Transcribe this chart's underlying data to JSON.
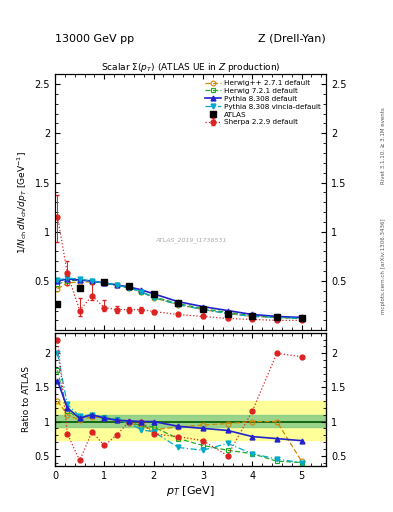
{
  "title_top": "13000 GeV pp",
  "title_right": "Z (Drell-Yan)",
  "plot_title": "Scalar Σ(p_T) (ATLAS UE in Z production)",
  "ylabel_main": "1/N$_{ch}$ dN$_{ch}$/dp$_T$ [GeV]",
  "ylabel_ratio": "Ratio to ATLAS",
  "xlabel": "p$_T$ [GeV]",
  "rivet_label": "Rivet 3.1.10, ≥ 3.1M events",
  "arxiv_label": "mcplots.cern.ch [arXiv:1306.3436]",
  "watermark": "ATLAS_2019_I1736531",
  "atlas_x": [
    0.05,
    0.5,
    1.0,
    1.5,
    2.0,
    2.5,
    3.0,
    3.5,
    4.0,
    4.5,
    5.0
  ],
  "atlas_y": [
    0.27,
    0.43,
    0.49,
    0.45,
    0.37,
    0.28,
    0.22,
    0.17,
    0.14,
    0.13,
    0.12
  ],
  "herwigpp_x": [
    0.05,
    0.25,
    0.5,
    0.75,
    1.0,
    1.25,
    1.5,
    1.75,
    2.0,
    2.5,
    3.0,
    3.5,
    4.0,
    4.5,
    5.0
  ],
  "herwigpp_y": [
    0.42,
    0.48,
    0.49,
    0.49,
    0.48,
    0.46,
    0.43,
    0.39,
    0.33,
    0.26,
    0.21,
    0.17,
    0.14,
    0.13,
    0.12
  ],
  "herwig721_x": [
    0.05,
    0.25,
    0.5,
    0.75,
    1.0,
    1.25,
    1.5,
    1.75,
    2.0,
    2.5,
    3.0,
    3.5,
    4.0,
    4.5,
    5.0
  ],
  "herwig721_y": [
    0.47,
    0.5,
    0.51,
    0.5,
    0.48,
    0.46,
    0.43,
    0.39,
    0.34,
    0.27,
    0.22,
    0.18,
    0.15,
    0.13,
    0.12
  ],
  "pythia8308_x": [
    0.05,
    0.25,
    0.5,
    0.75,
    1.0,
    1.25,
    1.5,
    1.75,
    2.0,
    2.5,
    3.0,
    3.5,
    4.0,
    4.5,
    5.0
  ],
  "pythia8308_y": [
    0.5,
    0.52,
    0.51,
    0.5,
    0.48,
    0.46,
    0.44,
    0.41,
    0.37,
    0.29,
    0.24,
    0.2,
    0.16,
    0.14,
    0.13
  ],
  "pythia_vincia_x": [
    0.05,
    0.25,
    0.5,
    0.75,
    1.0,
    1.25,
    1.5,
    1.75,
    2.0,
    2.5,
    3.0,
    3.5,
    4.0,
    4.5,
    5.0
  ],
  "pythia_vincia_y": [
    0.51,
    0.53,
    0.52,
    0.5,
    0.48,
    0.46,
    0.43,
    0.39,
    0.33,
    0.26,
    0.21,
    0.17,
    0.14,
    0.13,
    0.12
  ],
  "sherpa_x": [
    0.05,
    0.25,
    0.5,
    0.75,
    1.0,
    1.25,
    1.5,
    1.75,
    2.0,
    2.5,
    3.0,
    3.5,
    4.0,
    4.5,
    5.0
  ],
  "sherpa_y": [
    1.15,
    0.58,
    0.2,
    0.35,
    0.23,
    0.21,
    0.21,
    0.21,
    0.19,
    0.16,
    0.14,
    0.12,
    0.11,
    0.1,
    0.1
  ],
  "sherpa_yerr_lo": [
    0.25,
    0.12,
    0.06,
    0.04,
    0.03,
    0.03,
    0.03,
    0.03,
    0.02,
    0.02,
    0.02,
    0.02,
    0.01,
    0.01,
    0.01
  ],
  "sherpa_yerr_hi": [
    0.22,
    0.12,
    0.13,
    0.12,
    0.08,
    0.04,
    0.03,
    0.03,
    0.02,
    0.02,
    0.02,
    0.02,
    0.01,
    0.01,
    0.01
  ],
  "ratio_x": [
    0.05,
    0.25,
    0.5,
    0.75,
    1.0,
    1.25,
    1.5,
    1.75,
    2.0,
    2.5,
    3.0,
    3.5,
    4.0,
    4.5,
    5.0
  ],
  "ratio_herwigpp_y": [
    1.3,
    1.1,
    1.02,
    1.07,
    1.05,
    1.02,
    0.98,
    0.93,
    0.88,
    0.92,
    0.95,
    0.97,
    1.0,
    1.0,
    0.42
  ],
  "ratio_herwig721_y": [
    1.75,
    1.15,
    1.05,
    1.1,
    1.06,
    1.03,
    0.99,
    0.94,
    0.92,
    0.75,
    0.65,
    0.58,
    0.53,
    0.42,
    0.4
  ],
  "ratio_pythia8308_y": [
    1.6,
    1.2,
    1.05,
    1.1,
    1.05,
    1.02,
    1.01,
    1.0,
    1.0,
    0.93,
    0.9,
    0.87,
    0.78,
    0.75,
    0.72
  ],
  "ratio_pythia_vincia_y": [
    2.0,
    1.25,
    1.08,
    1.1,
    1.05,
    1.02,
    0.98,
    0.88,
    0.85,
    0.62,
    0.58,
    0.68,
    0.53,
    0.45,
    0.4
  ],
  "ratio_sherpa_y": [
    2.2,
    0.82,
    0.43,
    0.85,
    0.65,
    0.8,
    1.0,
    1.0,
    0.82,
    0.78,
    0.72,
    0.5,
    1.15,
    2.0,
    1.95
  ],
  "color_herwigpp": "#cc8800",
  "color_herwig721": "#22aa22",
  "color_pythia8308": "#2222cc",
  "color_pythia_vincia": "#00aacc",
  "color_sherpa": "#dd2222",
  "color_atlas": "#000000",
  "band_yellow": [
    0.73,
    1.3
  ],
  "band_green": [
    0.92,
    1.1
  ],
  "main_ylim": [
    0.0,
    2.6
  ],
  "ratio_ylim": [
    0.35,
    2.3
  ],
  "xlim": [
    0.0,
    5.5
  ]
}
